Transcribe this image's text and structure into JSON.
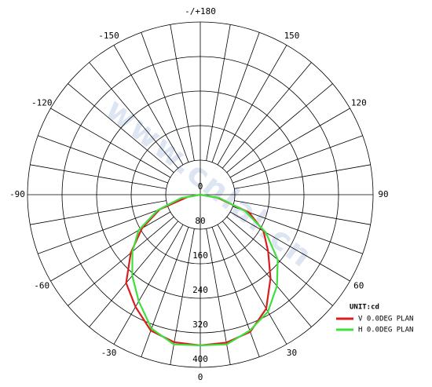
{
  "chart_data": {
    "type": "polar",
    "theta": [
      -90,
      -80,
      -70,
      -60,
      -50,
      -40,
      -30,
      -20,
      -10,
      0,
      10,
      20,
      30,
      40,
      50,
      60,
      70,
      80,
      90
    ],
    "series": [
      {
        "name": "V 0.0DEG PLAN",
        "color": "#d81e1e",
        "values": [
          0,
          30,
          100,
          156,
          210,
          267,
          300,
          335,
          347,
          349,
          348,
          338,
          305,
          253,
          205,
          169,
          120,
          40,
          0
        ]
      },
      {
        "name": "H 0.0DEG PLAN",
        "color": "#3ee03e",
        "values": [
          0,
          45,
          105,
          165,
          205,
          245,
          285,
          330,
          352,
          349,
          352,
          335,
          313,
          276,
          234,
          175,
          110,
          45,
          0
        ]
      }
    ],
    "rlim": [
      0,
      400
    ],
    "rticks": [
      0,
      80,
      160,
      240,
      320,
      400
    ],
    "thetaticks": [
      0,
      30,
      60,
      90,
      120,
      150,
      {
        "value": 180,
        "label": "-/+180"
      },
      -150,
      -120,
      -90,
      -60,
      -30
    ],
    "legend_title": "UNIT:cd",
    "watermark": "www.cnlal.cn"
  }
}
